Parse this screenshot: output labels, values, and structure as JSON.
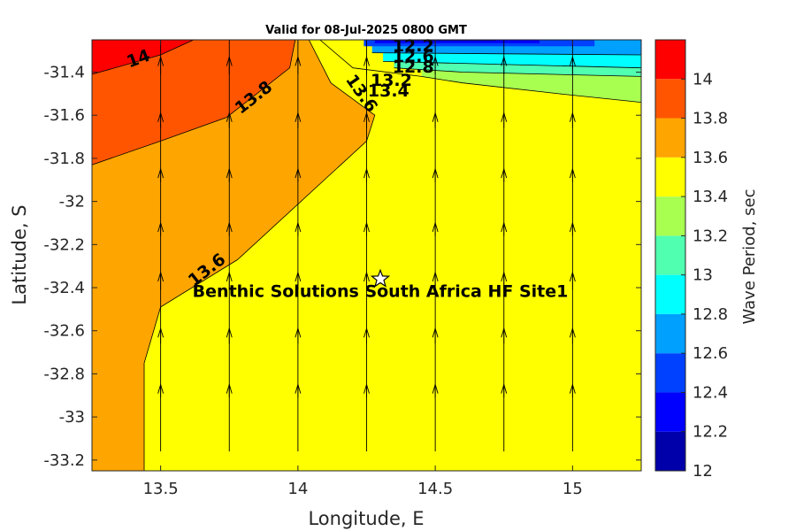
{
  "chart_data": {
    "type": "heatmap",
    "title": "Valid for 08-Jul-2025 0800 GMT",
    "xlabel": "Longitude, E",
    "ylabel": "Latitude, S",
    "xlim": [
      13.25,
      15.25
    ],
    "ylim": [
      -33.25,
      -31.25
    ],
    "x_ticks": [
      13.5,
      14,
      14.5,
      15
    ],
    "x_tick_labels": [
      "13.5",
      "14",
      "14.5",
      "15"
    ],
    "y_ticks": [
      -31.4,
      -31.6,
      -31.8,
      -32,
      -32.2,
      -32.4,
      -32.6,
      -32.8,
      -33,
      -33.2
    ],
    "y_tick_labels": [
      "-31.4",
      "-31.6",
      "-31.8",
      "-32",
      "-32.2",
      "-32.4",
      "-32.6",
      "-32.8",
      "-33",
      "-33.2"
    ],
    "colorbar": {
      "label": "Wave Period, sec",
      "levels": [
        12,
        12.2,
        12.4,
        12.6,
        12.8,
        13,
        13.2,
        13.4,
        13.6,
        13.8,
        14,
        14.2
      ],
      "colors": [
        "#0000aa",
        "#0000ff",
        "#0040ff",
        "#00a0ff",
        "#00ffff",
        "#50ffb0",
        "#a8ff50",
        "#ffff00",
        "#ffa500",
        "#ff5500",
        "#ff0000"
      ],
      "tick_values": [
        12,
        12.2,
        12.4,
        12.6,
        12.8,
        13,
        13.2,
        13.4,
        13.6,
        13.8,
        14
      ],
      "tick_labels": [
        "12",
        "12.2",
        "12.4",
        "12.6",
        "12.8",
        "13",
        "13.2",
        "13.4",
        "13.6",
        "13.8",
        "14"
      ]
    },
    "filled_regions": [
      {
        "level": "13.4-13.6",
        "color": "#ffff00",
        "polygon": [
          [
            13.25,
            -33.25
          ],
          [
            15.25,
            -33.25
          ],
          [
            15.25,
            -31.25
          ],
          [
            13.25,
            -31.25
          ]
        ]
      },
      {
        "level": "13.6-13.8",
        "color": "#ffa500",
        "polygon": [
          [
            13.25,
            -33.25
          ],
          [
            13.44,
            -33.25
          ],
          [
            13.44,
            -32.75
          ],
          [
            13.5,
            -32.49
          ],
          [
            13.78,
            -32.27
          ],
          [
            14.25,
            -31.72
          ],
          [
            14.28,
            -31.6
          ],
          [
            14.12,
            -31.45
          ],
          [
            14.04,
            -31.25
          ],
          [
            13.25,
            -31.25
          ]
        ]
      },
      {
        "level": "13.8-14",
        "color": "#ff5500",
        "polygon": [
          [
            13.25,
            -31.25
          ],
          [
            13.25,
            -31.83
          ],
          [
            13.5,
            -31.72
          ],
          [
            13.74,
            -31.61
          ],
          [
            13.97,
            -31.38
          ],
          [
            13.99,
            -31.25
          ]
        ]
      },
      {
        "level": "14-14.2",
        "color": "#ff0000",
        "polygon": [
          [
            13.25,
            -31.25
          ],
          [
            13.25,
            -31.41
          ],
          [
            13.5,
            -31.32
          ],
          [
            13.62,
            -31.25
          ]
        ]
      },
      {
        "level": "13.2-13.4",
        "color": "#a8ff50",
        "polygon": [
          [
            14.45,
            -31.42
          ],
          [
            14.6,
            -31.45
          ],
          [
            14.95,
            -31.5
          ],
          [
            15.25,
            -31.54
          ],
          [
            15.25,
            -31.25
          ],
          [
            14.45,
            -31.25
          ]
        ]
      },
      {
        "level": "13.0-13.2",
        "color": "#50ffb0",
        "polygon": [
          [
            14.35,
            -31.38
          ],
          [
            14.6,
            -31.4
          ],
          [
            15.25,
            -31.42
          ],
          [
            15.25,
            -31.25
          ],
          [
            14.35,
            -31.25
          ]
        ]
      },
      {
        "level": "12.8-13.0",
        "color": "#00ffff",
        "polygon": [
          [
            14.31,
            -31.35
          ],
          [
            15.25,
            -31.38
          ],
          [
            15.25,
            -31.25
          ],
          [
            14.31,
            -31.25
          ]
        ]
      },
      {
        "level": "12.6-12.8",
        "color": "#00a0ff",
        "polygon": [
          [
            14.27,
            -31.31
          ],
          [
            15.25,
            -31.32
          ],
          [
            15.25,
            -31.25
          ],
          [
            14.27,
            -31.25
          ]
        ]
      },
      {
        "level": "12.4-12.6",
        "color": "#0040ff",
        "polygon": [
          [
            14.24,
            -31.28
          ],
          [
            15.08,
            -31.28
          ],
          [
            15.08,
            -31.25
          ],
          [
            14.24,
            -31.25
          ]
        ]
      },
      {
        "level": "12.2-12.4",
        "color": "#0000ff",
        "polygon": [
          [
            14.28,
            -31.265
          ],
          [
            14.88,
            -31.265
          ],
          [
            14.88,
            -31.25
          ],
          [
            14.28,
            -31.25
          ]
        ]
      },
      {
        "level": "12.0-12.2",
        "color": "#0000aa",
        "polygon": [
          [
            14.34,
            -31.256
          ],
          [
            14.72,
            -31.256
          ],
          [
            14.72,
            -31.25
          ],
          [
            14.34,
            -31.25
          ]
        ]
      }
    ],
    "contour_lines": [
      [
        [
          13.44,
          -33.25
        ],
        [
          13.44,
          -32.75
        ],
        [
          13.5,
          -32.49
        ],
        [
          13.78,
          -32.27
        ],
        [
          14.25,
          -31.72
        ],
        [
          14.28,
          -31.6
        ],
        [
          14.12,
          -31.45
        ],
        [
          14.04,
          -31.25
        ]
      ],
      [
        [
          13.25,
          -31.83
        ],
        [
          13.5,
          -31.72
        ],
        [
          13.74,
          -31.61
        ],
        [
          13.97,
          -31.38
        ],
        [
          13.99,
          -31.25
        ]
      ],
      [
        [
          13.25,
          -31.41
        ],
        [
          13.5,
          -31.32
        ],
        [
          13.62,
          -31.25
        ]
      ],
      [
        [
          14.08,
          -31.25
        ],
        [
          14.2,
          -31.38
        ],
        [
          14.45,
          -31.42
        ],
        [
          14.6,
          -31.45
        ],
        [
          14.95,
          -31.5
        ],
        [
          15.25,
          -31.54
        ]
      ],
      [
        [
          14.35,
          -31.38
        ],
        [
          14.6,
          -31.4
        ],
        [
          15.25,
          -31.42
        ]
      ],
      [
        [
          14.31,
          -31.35
        ],
        [
          15.25,
          -31.38
        ]
      ],
      [
        [
          14.27,
          -31.31
        ],
        [
          15.25,
          -31.32
        ]
      ]
    ],
    "contour_labels": [
      {
        "text": "14",
        "x": 13.42,
        "y": -31.34,
        "angle": -20
      },
      {
        "text": "13.8",
        "x": 13.84,
        "y": -31.52,
        "angle": -38
      },
      {
        "text": "13.6",
        "x": 14.23,
        "y": -31.5,
        "angle": 55
      },
      {
        "text": "13.6",
        "x": 13.67,
        "y": -32.32,
        "angle": -38
      },
      {
        "text": "13.4",
        "x": 14.33,
        "y": -31.49,
        "angle": 0
      },
      {
        "text": "13.2",
        "x": 14.34,
        "y": -31.44,
        "angle": 0
      },
      {
        "text": "12.8",
        "x": 14.42,
        "y": -31.38,
        "angle": 0
      },
      {
        "text": "12.6",
        "x": 14.42,
        "y": -31.33,
        "angle": 0
      },
      {
        "text": "12.2",
        "x": 14.42,
        "y": -31.28,
        "angle": 0
      }
    ],
    "vector_field": {
      "x": [
        13.5,
        13.75,
        14,
        14.25,
        14.5,
        14.75,
        15
      ],
      "y": [
        -31.41,
        -31.66,
        -31.91,
        -32.16,
        -32.41,
        -32.66,
        -32.91,
        -33.16
      ],
      "direction": "northward",
      "lengths_deg": [
        0.27,
        0.33,
        0.32,
        0.31,
        0.31,
        0.33,
        0.32,
        0.31
      ]
    },
    "site": {
      "name": "Benthic Solutions South Africa HF Site1",
      "lon": 14.3,
      "lat": -32.36
    }
  }
}
